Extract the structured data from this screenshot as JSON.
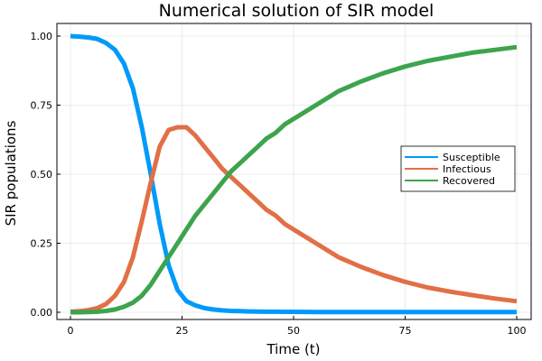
{
  "chart_data": {
    "type": "line",
    "title": "Numerical solution of SIR model",
    "xlabel": "Time (t)",
    "ylabel": "SIR populations",
    "xlim": [
      0,
      100
    ],
    "ylim": [
      0,
      1
    ],
    "xticks": [
      0,
      25,
      50,
      75,
      100
    ],
    "yticks": [
      0,
      0.25,
      0.5,
      0.75,
      1.0
    ],
    "xtick_labels": [
      "0",
      "25",
      "50",
      "75",
      "100"
    ],
    "ytick_labels": [
      "0.00",
      "0.25",
      "0.50",
      "0.75",
      "1.00"
    ],
    "grid": true,
    "legend_position": "right",
    "x": [
      0,
      2,
      4,
      6,
      8,
      10,
      12,
      14,
      16,
      18,
      20,
      22,
      24,
      26,
      28,
      30,
      32,
      34,
      36,
      38,
      40,
      42,
      44,
      46,
      48,
      50,
      55,
      60,
      65,
      70,
      75,
      80,
      85,
      90,
      95,
      100
    ],
    "series": [
      {
        "name": "Susceptible",
        "color": "#009af9",
        "values": [
          1.0,
          0.998,
          0.995,
          0.99,
          0.975,
          0.95,
          0.9,
          0.81,
          0.67,
          0.5,
          0.32,
          0.17,
          0.08,
          0.04,
          0.025,
          0.015,
          0.01,
          0.007,
          0.005,
          0.004,
          0.003,
          0.0025,
          0.002,
          0.002,
          0.0015,
          0.0015,
          0.001,
          0.001,
          0.001,
          0.001,
          0.001,
          0.001,
          0.001,
          0.001,
          0.001,
          0.001
        ]
      },
      {
        "name": "Infectious",
        "color": "#e26f46",
        "values": [
          0.002,
          0.004,
          0.008,
          0.015,
          0.03,
          0.06,
          0.11,
          0.2,
          0.33,
          0.47,
          0.6,
          0.66,
          0.67,
          0.67,
          0.64,
          0.6,
          0.56,
          0.52,
          0.49,
          0.46,
          0.43,
          0.4,
          0.37,
          0.35,
          0.32,
          0.3,
          0.25,
          0.2,
          0.165,
          0.135,
          0.11,
          0.09,
          0.075,
          0.062,
          0.05,
          0.04
        ]
      },
      {
        "name": "Recovered",
        "color": "#3da44d",
        "values": [
          0.0,
          0.0,
          0.001,
          0.002,
          0.005,
          0.01,
          0.02,
          0.035,
          0.06,
          0.1,
          0.15,
          0.2,
          0.25,
          0.3,
          0.35,
          0.39,
          0.43,
          0.47,
          0.51,
          0.54,
          0.57,
          0.6,
          0.63,
          0.65,
          0.68,
          0.7,
          0.75,
          0.8,
          0.835,
          0.865,
          0.89,
          0.91,
          0.925,
          0.94,
          0.95,
          0.96
        ]
      }
    ]
  }
}
